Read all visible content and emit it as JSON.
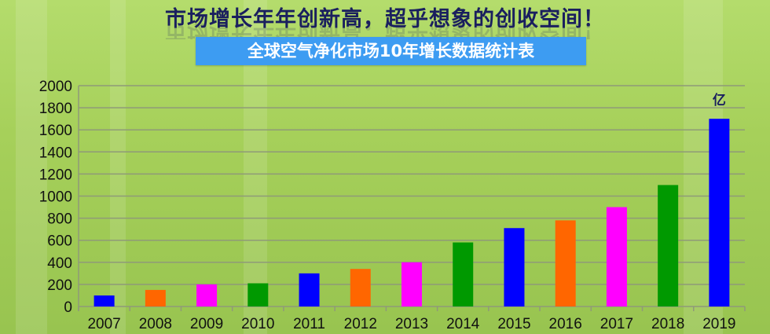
{
  "header": {
    "title": "市场增长年年创新高，超乎想象的创收空间！",
    "subtitle": "全球空气净化市场10年增长数据统计表"
  },
  "chart_data": {
    "type": "bar",
    "title": "全球空气净化市场10年增长数据统计表",
    "categories": [
      "2007",
      "2008",
      "2009",
      "2010",
      "2011",
      "2012",
      "2013",
      "2014",
      "2015",
      "2016",
      "2017",
      "2018",
      "2019"
    ],
    "values": [
      100,
      150,
      200,
      210,
      300,
      340,
      400,
      580,
      710,
      780,
      900,
      1100,
      1700
    ],
    "colors": [
      "#0000ff",
      "#ff6600",
      "#ff00ff",
      "#009900",
      "#0000ff",
      "#ff6600",
      "#ff00ff",
      "#009900",
      "#0000ff",
      "#ff6600",
      "#ff00ff",
      "#009900",
      "#0000ff"
    ],
    "unit_label": "亿",
    "ylim": [
      0,
      2000
    ],
    "yticks": [
      0,
      200,
      400,
      600,
      800,
      1000,
      1200,
      1400,
      1600,
      1800,
      2000
    ],
    "grid": true,
    "legend": "none"
  }
}
